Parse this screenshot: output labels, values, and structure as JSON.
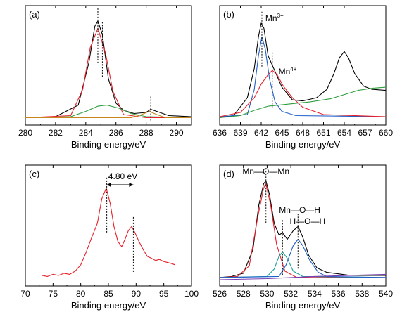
{
  "colors": {
    "black": "#000000",
    "red": "#e8202a",
    "green": "#2e9e3e",
    "orange": "#c8861a",
    "blue": "#1f5fc8",
    "olive": "#9a8a1e",
    "teal": "#16a39a",
    "purple": "#7a3fb5",
    "gold": "#c89a2a"
  },
  "chart_data": [
    {
      "panel": "(a)",
      "type": "line",
      "xlabel": "Binding energy/eV",
      "xlim": [
        280,
        291
      ],
      "ylim": [
        0,
        1
      ],
      "xticks": [
        "280",
        "282",
        "284",
        "286",
        "288",
        "290"
      ],
      "series": [
        {
          "color": "black",
          "x": [
            280,
            282,
            283.5,
            284.2,
            284.6,
            284.8,
            285.1,
            285.5,
            286.0,
            286.5,
            287.2,
            288.0,
            288.3,
            288.7,
            289.5,
            291
          ],
          "y": [
            0.03,
            0.04,
            0.15,
            0.55,
            0.9,
            0.95,
            0.82,
            0.4,
            0.17,
            0.1,
            0.07,
            0.08,
            0.11,
            0.09,
            0.05,
            0.04
          ]
        },
        {
          "color": "red",
          "x": [
            280,
            283,
            283.8,
            284.3,
            284.8,
            285.3,
            285.8,
            286.5,
            288,
            291
          ],
          "y": [
            0.03,
            0.05,
            0.3,
            0.7,
            0.88,
            0.65,
            0.28,
            0.06,
            0.03,
            0.03
          ]
        },
        {
          "color": "green",
          "x": [
            280,
            283,
            284,
            284.8,
            285.4,
            286.2,
            287,
            288,
            291
          ],
          "y": [
            0.03,
            0.04,
            0.09,
            0.14,
            0.15,
            0.12,
            0.07,
            0.04,
            0.03
          ]
        },
        {
          "color": "orange",
          "x": [
            280,
            287,
            287.7,
            288.2,
            288.7,
            289.3,
            291
          ],
          "y": [
            0.03,
            0.03,
            0.06,
            0.09,
            0.06,
            0.03,
            0.03
          ]
        }
      ],
      "markers": [
        284.8,
        285.1,
        288.3
      ]
    },
    {
      "panel": "(b)",
      "type": "line",
      "xlabel": "Binding energy/eV",
      "xlim": [
        636,
        660
      ],
      "ylim": [
        0,
        1
      ],
      "xticks": [
        "636",
        "639",
        "642",
        "645",
        "648",
        "651",
        "654",
        "657",
        "660"
      ],
      "annotations": [
        "Mn3+",
        "Mn4+"
      ],
      "series": [
        {
          "color": "black",
          "x": [
            636,
            638,
            640,
            641,
            641.6,
            642,
            642.4,
            643,
            643.8,
            645,
            646.5,
            648,
            650,
            651.5,
            652.5,
            653.3,
            654,
            654.6,
            655.5,
            656.8,
            658,
            660
          ],
          "y": [
            0.03,
            0.05,
            0.22,
            0.5,
            0.8,
            0.93,
            0.88,
            0.62,
            0.5,
            0.32,
            0.2,
            0.19,
            0.22,
            0.3,
            0.45,
            0.6,
            0.66,
            0.6,
            0.45,
            0.33,
            0.3,
            0.29
          ]
        },
        {
          "color": "blue",
          "x": [
            636,
            640,
            641,
            641.6,
            642.1,
            642.6,
            643.2,
            644,
            645,
            647,
            660
          ],
          "y": [
            0.04,
            0.06,
            0.3,
            0.62,
            0.8,
            0.68,
            0.4,
            0.18,
            0.09,
            0.05,
            0.04
          ]
        },
        {
          "color": "red",
          "x": [
            636,
            639,
            641,
            642,
            643,
            643.6,
            644.3,
            645.2,
            646.5,
            648,
            651,
            660
          ],
          "y": [
            0.04,
            0.08,
            0.22,
            0.35,
            0.44,
            0.48,
            0.44,
            0.33,
            0.22,
            0.13,
            0.06,
            0.04
          ]
        },
        {
          "color": "green",
          "x": [
            636,
            639,
            641,
            643,
            646,
            649,
            652,
            654,
            656,
            658,
            660
          ],
          "y": [
            0.03,
            0.05,
            0.1,
            0.14,
            0.16,
            0.18,
            0.21,
            0.25,
            0.29,
            0.31,
            0.32
          ]
        }
      ],
      "markers": [
        642.1,
        643.6
      ]
    },
    {
      "panel": "(c)",
      "type": "line",
      "xlabel": "Binding energy/eV",
      "xlim": [
        70,
        100
      ],
      "ylim": [
        0,
        1
      ],
      "xticks": [
        "70",
        "75",
        "80",
        "85",
        "90",
        "95",
        "100"
      ],
      "annotations": [
        "4.80 eV"
      ],
      "series": [
        {
          "color": "red",
          "x": [
            73,
            74,
            75,
            76,
            77,
            78,
            79,
            80,
            81,
            82,
            83,
            83.8,
            84.6,
            85.3,
            86,
            86.7,
            87.4,
            88,
            88.6,
            89.2,
            89.8,
            90.5,
            91.3,
            92,
            92.8,
            93.5,
            94.2,
            95,
            95.8,
            96.5,
            97
          ],
          "y": [
            0.06,
            0.05,
            0.07,
            0.06,
            0.08,
            0.07,
            0.1,
            0.16,
            0.28,
            0.42,
            0.55,
            0.78,
            0.88,
            0.74,
            0.52,
            0.38,
            0.33,
            0.4,
            0.48,
            0.52,
            0.46,
            0.38,
            0.3,
            0.24,
            0.22,
            0.2,
            0.21,
            0.19,
            0.18,
            0.17,
            0.16
          ]
        }
      ],
      "markers": [
        84.7,
        89.5
      ]
    },
    {
      "panel": "(d)",
      "type": "line",
      "xlabel": "Binding energy/eV",
      "xlim": [
        526,
        540
      ],
      "ylim": [
        0,
        1
      ],
      "xticks": [
        "526",
        "528",
        "530",
        "532",
        "534",
        "536",
        "538",
        "540"
      ],
      "annotations": [
        "Mn—O—Mn",
        "Mn—O—H",
        "H—O—H"
      ],
      "series": [
        {
          "color": "black",
          "x": [
            526,
            527,
            528,
            528.8,
            529.3,
            529.7,
            529.9,
            530.2,
            530.6,
            531.0,
            531.3,
            531.7,
            532.2,
            532.6,
            533.0,
            533.5,
            534.2,
            535,
            537,
            540
          ],
          "y": [
            0.04,
            0.05,
            0.08,
            0.3,
            0.72,
            0.92,
            0.95,
            0.82,
            0.55,
            0.44,
            0.46,
            0.4,
            0.48,
            0.52,
            0.42,
            0.25,
            0.13,
            0.09,
            0.06,
            0.06
          ]
        },
        {
          "color": "red",
          "x": [
            526,
            527.5,
            528.5,
            529.2,
            529.7,
            529.9,
            530.3,
            530.8,
            531.5,
            532.5,
            540
          ],
          "y": [
            0.04,
            0.05,
            0.15,
            0.6,
            0.88,
            0.92,
            0.72,
            0.35,
            0.1,
            0.04,
            0.04
          ]
        },
        {
          "color": "teal",
          "x": [
            526,
            530,
            530.6,
            531.0,
            531.3,
            531.7,
            532.2,
            533,
            540
          ],
          "y": [
            0.04,
            0.05,
            0.12,
            0.24,
            0.28,
            0.22,
            0.1,
            0.05,
            0.04
          ]
        },
        {
          "color": "blue",
          "x": [
            526,
            531,
            531.6,
            532.2,
            532.6,
            533.0,
            533.6,
            534.3,
            535,
            540
          ],
          "y": [
            0.04,
            0.05,
            0.16,
            0.34,
            0.4,
            0.34,
            0.2,
            0.09,
            0.05,
            0.04
          ]
        },
        {
          "color": "purple",
          "x": [
            526,
            530,
            534,
            537,
            540
          ],
          "y": [
            0.02,
            0.03,
            0.05,
            0.06,
            0.07
          ]
        }
      ],
      "markers": [
        529.9,
        531.3,
        532.6
      ]
    }
  ]
}
